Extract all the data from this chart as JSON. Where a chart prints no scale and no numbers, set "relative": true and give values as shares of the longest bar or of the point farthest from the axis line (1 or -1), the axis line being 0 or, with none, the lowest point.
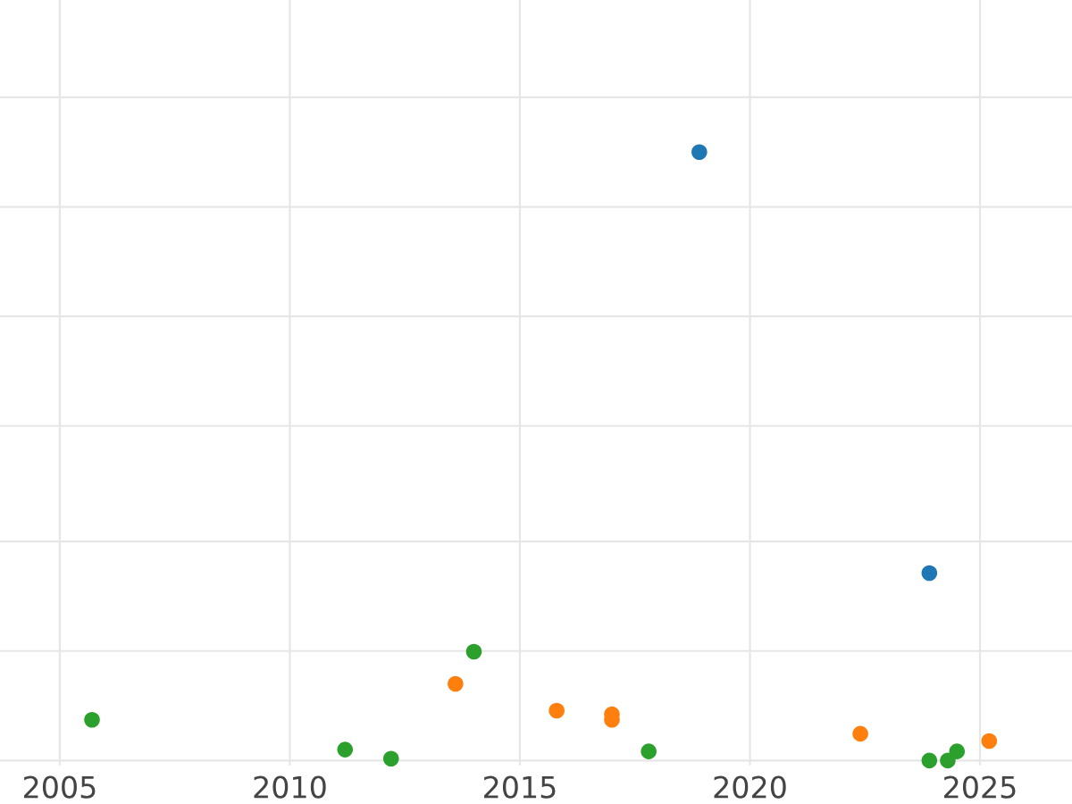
{
  "chart_data": {
    "type": "scatter",
    "relative": true,
    "grid": true,
    "marker": "circle",
    "tick_labels": "x",
    "xlim": [
      2003.7,
      2027.0
    ],
    "xticks": [
      2005,
      2010,
      2015,
      2020,
      2025
    ],
    "series": [
      {
        "color": "#1f77b4",
        "x": [
          2018.9,
          2023.9
        ],
        "values": [
          1,
          0.308
        ]
      },
      {
        "color": "#ff7f0e",
        "x": [
          2013.6,
          2015.8,
          2017.0,
          2017.0,
          2022.4,
          2025.2
        ],
        "values": [
          0.126,
          0.082,
          0.076,
          0.067,
          0.044,
          0.032
        ]
      },
      {
        "color": "#2ca02c",
        "x": [
          2005.7,
          2011.2,
          2012.2,
          2014.0,
          2017.8,
          2023.9,
          2024.3,
          2024.5
        ],
        "values": [
          0.067,
          0.018,
          0.003,
          0.179,
          0.015,
          0,
          0,
          0.015
        ]
      }
    ]
  }
}
